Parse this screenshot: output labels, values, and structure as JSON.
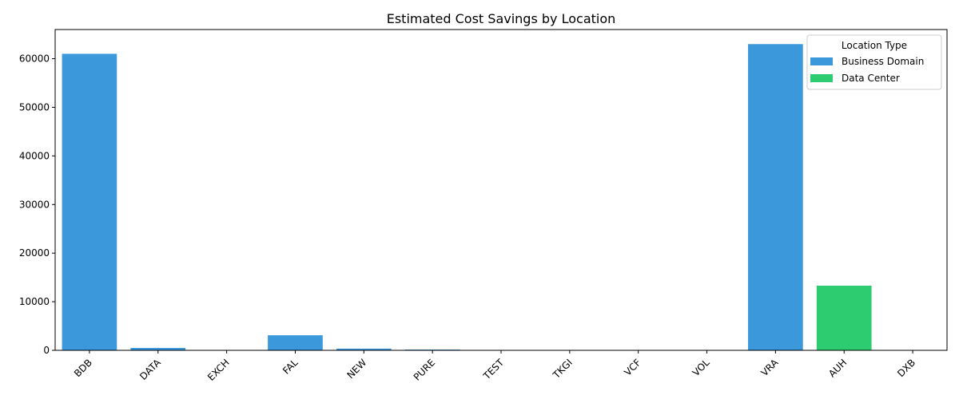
{
  "chart_data": {
    "type": "bar",
    "title": "Estimated Cost Savings by Location",
    "xlabel": "",
    "ylabel": "",
    "ylim": [
      0,
      66000
    ],
    "yticks": [
      0,
      10000,
      20000,
      30000,
      40000,
      50000,
      60000
    ],
    "grid": false,
    "legend": {
      "title": "Location Type",
      "placement": "top-right",
      "entries": [
        {
          "name": "Business Domain",
          "color": "#3a98db"
        },
        {
          "name": "Data Center",
          "color": "#2ecc71"
        }
      ]
    },
    "categories": [
      "BDB",
      "DATA",
      "EXCH",
      "FAL",
      "NEW",
      "PURE",
      "TEST",
      "TKGI",
      "VCF",
      "VOL",
      "VRA",
      "AUH",
      "DXB"
    ],
    "values": [
      61000,
      500,
      0,
      3100,
      350,
      150,
      0,
      0,
      0,
      0,
      63000,
      13300,
      0
    ],
    "group": [
      "Business Domain",
      "Business Domain",
      "Business Domain",
      "Business Domain",
      "Business Domain",
      "Business Domain",
      "Business Domain",
      "Business Domain",
      "Business Domain",
      "Business Domain",
      "Business Domain",
      "Data Center",
      "Data Center"
    ]
  }
}
